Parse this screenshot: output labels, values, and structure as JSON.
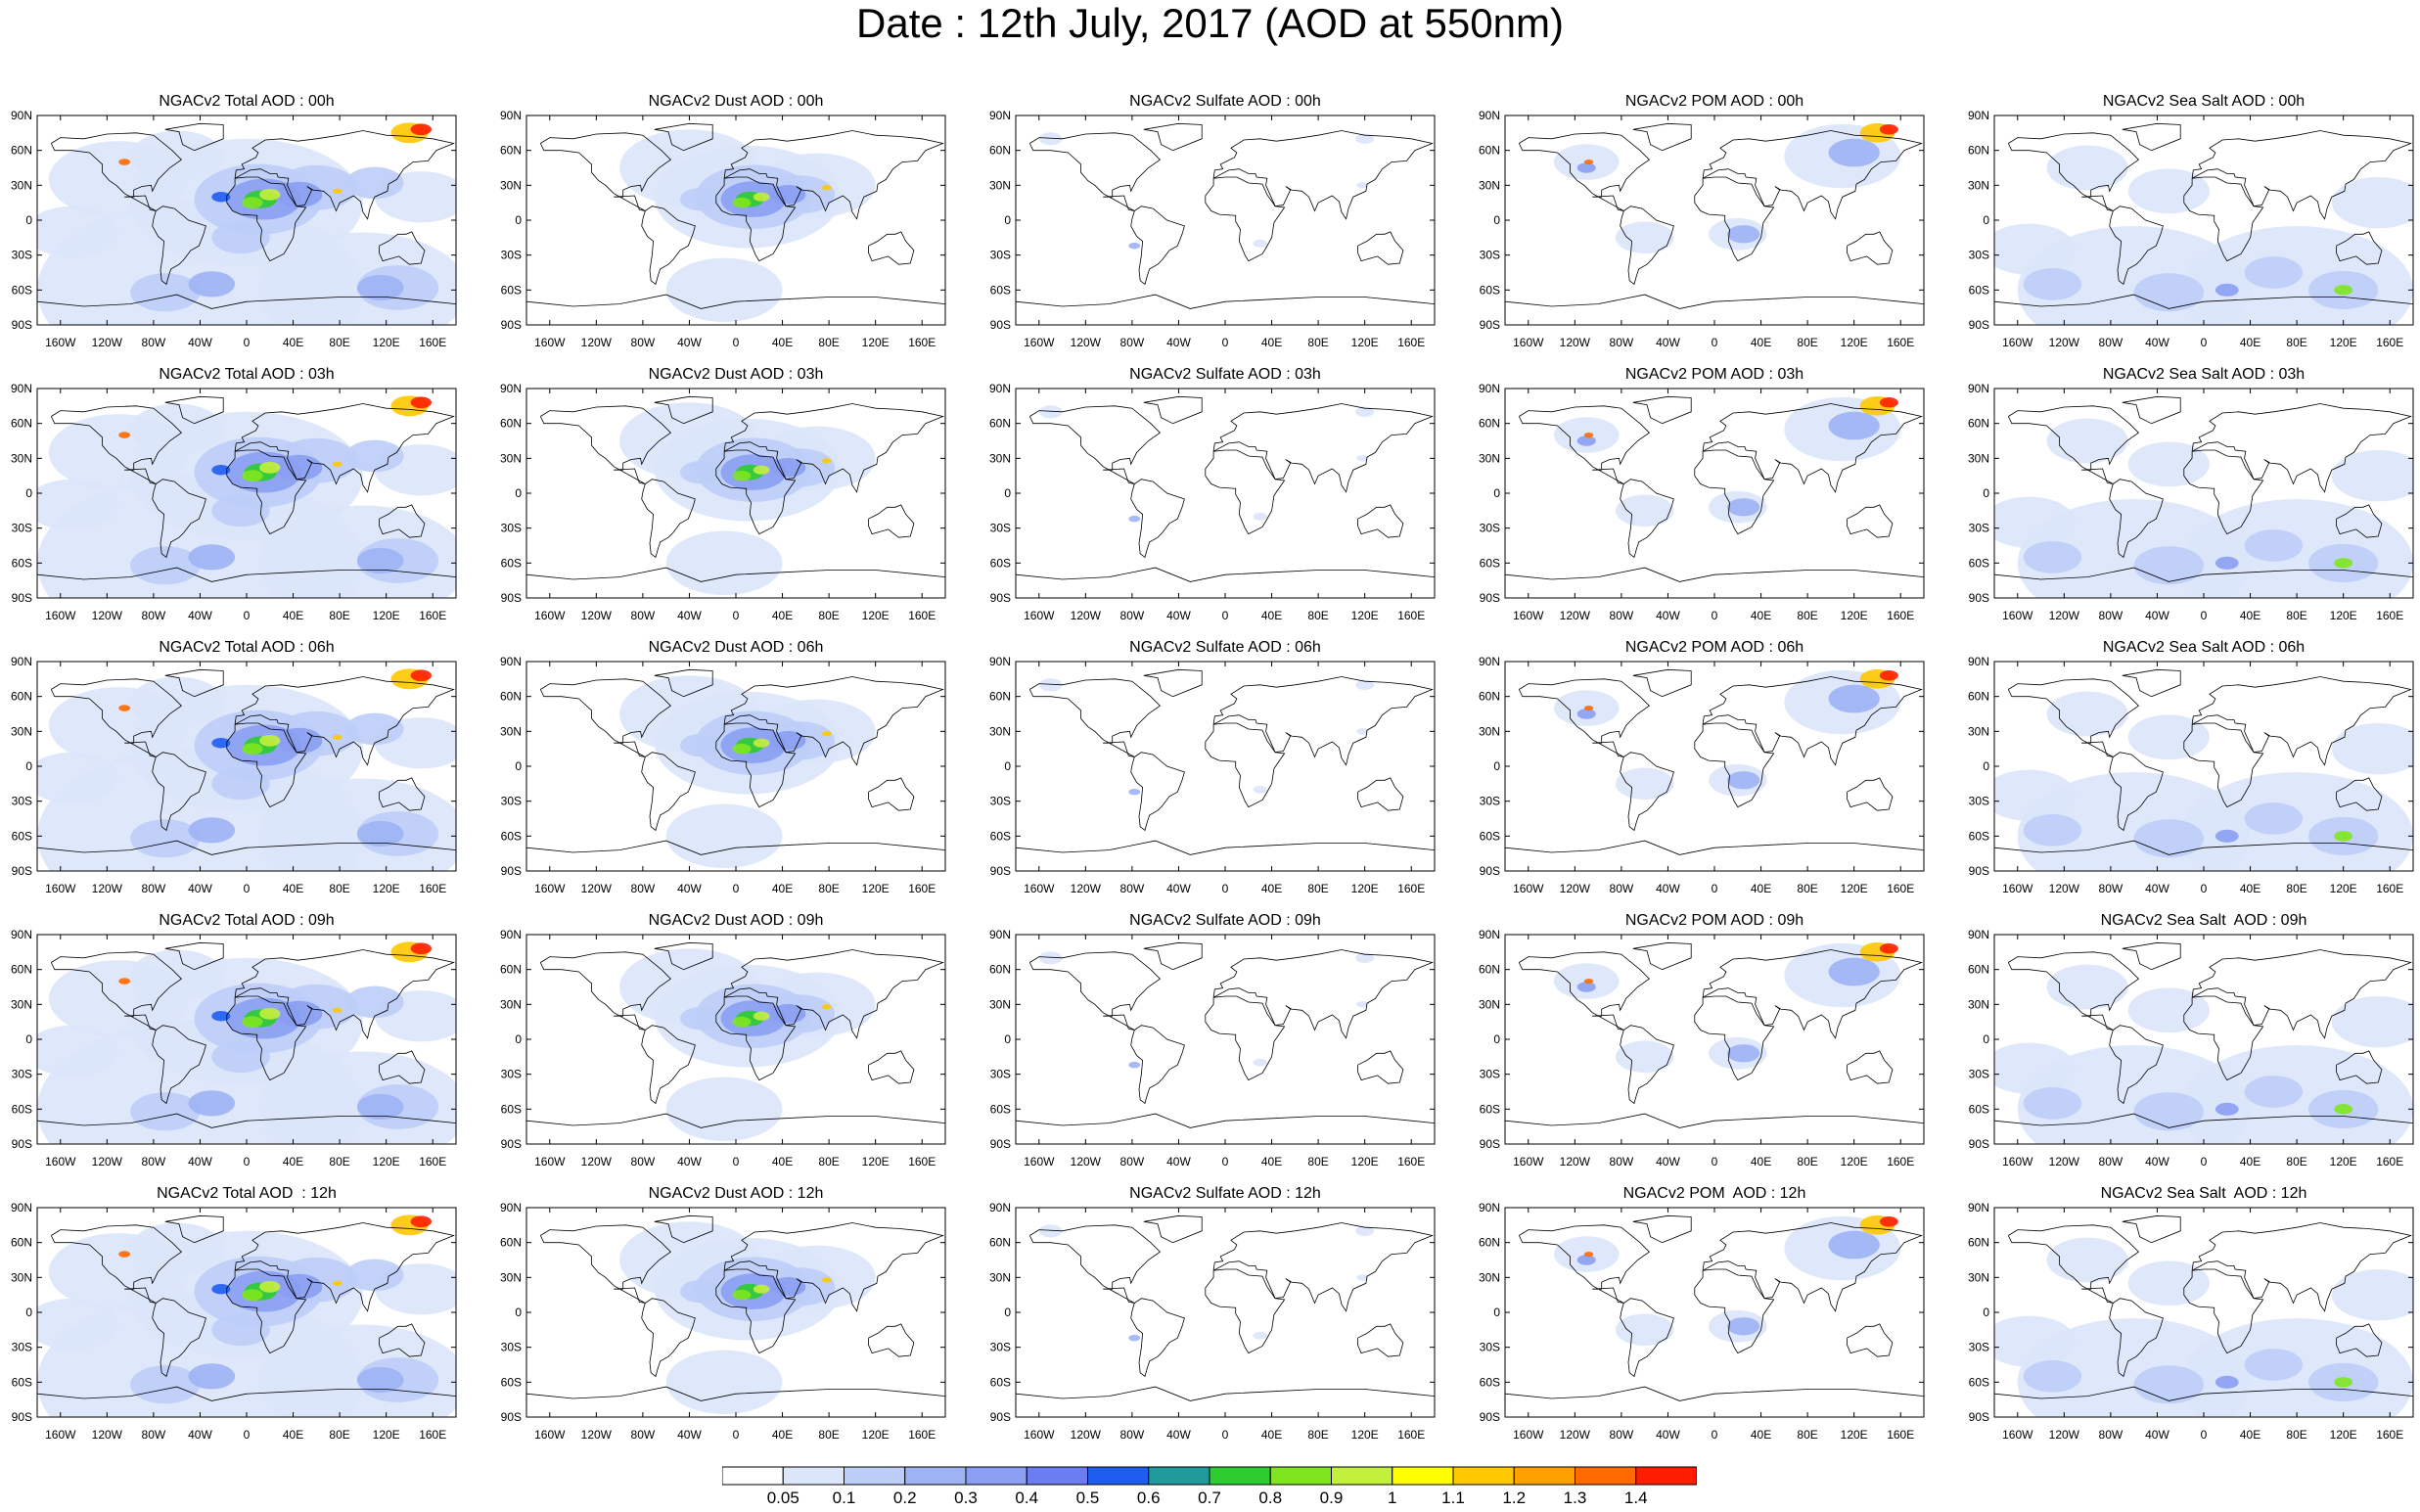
{
  "figure": {
    "title": "Date : 12th July, 2017 (AOD at 550nm)"
  },
  "panels": [
    {
      "id": "total-00",
      "title": "NGACv2 Total AOD : 00h",
      "species": "total"
    },
    {
      "id": "dust-00",
      "title": "NGACv2 Dust AOD : 00h",
      "species": "dust"
    },
    {
      "id": "sulfate-00",
      "title": "NGACv2 Sulfate AOD : 00h",
      "species": "sulfate"
    },
    {
      "id": "pom-00",
      "title": "NGACv2 POM AOD : 00h",
      "species": "pom"
    },
    {
      "id": "seasalt-00",
      "title": "NGACv2 Sea Salt AOD : 00h",
      "species": "seasalt"
    },
    {
      "id": "total-03",
      "title": "NGACv2 Total AOD : 03h",
      "species": "total"
    },
    {
      "id": "dust-03",
      "title": "NGACv2 Dust AOD : 03h",
      "species": "dust"
    },
    {
      "id": "sulfate-03",
      "title": "NGACv2 Sulfate AOD : 03h",
      "species": "sulfate"
    },
    {
      "id": "pom-03",
      "title": "NGACv2 POM AOD : 03h",
      "species": "pom"
    },
    {
      "id": "seasalt-03",
      "title": "NGACv2 Sea Salt AOD : 03h",
      "species": "seasalt"
    },
    {
      "id": "total-06",
      "title": "NGACv2 Total AOD : 06h",
      "species": "total"
    },
    {
      "id": "dust-06",
      "title": "NGACv2 Dust AOD : 06h",
      "species": "dust"
    },
    {
      "id": "sulfate-06",
      "title": "NGACv2 Sulfate AOD : 06h",
      "species": "sulfate"
    },
    {
      "id": "pom-06",
      "title": "NGACv2 POM AOD : 06h",
      "species": "pom"
    },
    {
      "id": "seasalt-06",
      "title": "NGACv2 Sea Salt AOD : 06h",
      "species": "seasalt"
    },
    {
      "id": "total-09",
      "title": "NGACv2 Total AOD : 09h",
      "species": "total"
    },
    {
      "id": "dust-09",
      "title": "NGACv2 Dust AOD : 09h",
      "species": "dust"
    },
    {
      "id": "sulfate-09",
      "title": "NGACv2 Sulfate AOD : 09h",
      "species": "sulfate"
    },
    {
      "id": "pom-09",
      "title": "NGACv2 POM AOD : 09h",
      "species": "pom"
    },
    {
      "id": "seasalt-09",
      "title": "NGACv2 Sea Salt  AOD : 09h",
      "species": "seasalt"
    },
    {
      "id": "total-12",
      "title": "NGACv2 Total AOD  : 12h",
      "species": "total"
    },
    {
      "id": "dust-12",
      "title": "NGACv2 Dust AOD : 12h",
      "species": "dust"
    },
    {
      "id": "sulfate-12",
      "title": "NGACv2 Sulfate AOD : 12h",
      "species": "sulfate"
    },
    {
      "id": "pom-12",
      "title": "NGACv2 POM  AOD : 12h",
      "species": "pom"
    },
    {
      "id": "seasalt-12",
      "title": "NGACv2 Sea Salt  AOD : 12h",
      "species": "seasalt"
    }
  ],
  "axes": {
    "lat_labels": [
      "90N",
      "60N",
      "30N",
      "0",
      "30S",
      "60S",
      "90S"
    ],
    "lon_labels": [
      "160W",
      "120W",
      "80W",
      "40W",
      "0",
      "40E",
      "80E",
      "120E",
      "160E"
    ]
  },
  "colorbar": {
    "labels": [
      "0.05",
      "0.1",
      "0.2",
      "0.3",
      "0.4",
      "0.5",
      "0.6",
      "0.7",
      "0.8",
      "0.9",
      "1",
      "1.1",
      "1.2",
      "1.3",
      "1.4"
    ],
    "colors": [
      "#ffffff",
      "#dce6fa",
      "#bccdf7",
      "#9db3f4",
      "#8a9ff2",
      "#6b7df0",
      "#1f5cf0",
      "#1e9a9a",
      "#2ecc2e",
      "#7ee51e",
      "#c3f03c",
      "#ffff00",
      "#ffc800",
      "#ffa000",
      "#ff6a00",
      "#ff1e00"
    ]
  }
}
